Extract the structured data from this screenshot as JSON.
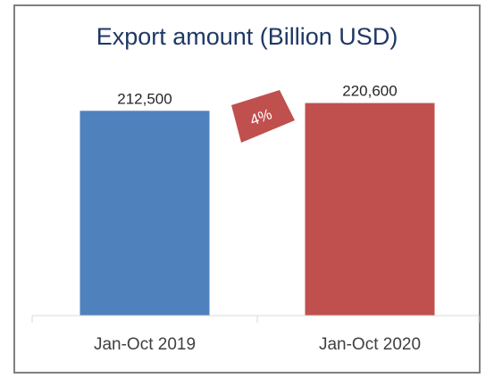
{
  "chart_data": {
    "type": "bar",
    "title": "Export amount (Billion USD)",
    "categories": [
      "Jan-Oct 2019",
      "Jan-Oct 2020"
    ],
    "values": [
      212500,
      220600
    ],
    "data_labels": [
      "212,500",
      "220,600"
    ],
    "colors": [
      "#4f81bd",
      "#c0504d"
    ],
    "ylim": [
      0,
      235000
    ],
    "grid": false,
    "legend": "none",
    "annotation": {
      "text": "4%",
      "color": "#c0504d"
    }
  }
}
